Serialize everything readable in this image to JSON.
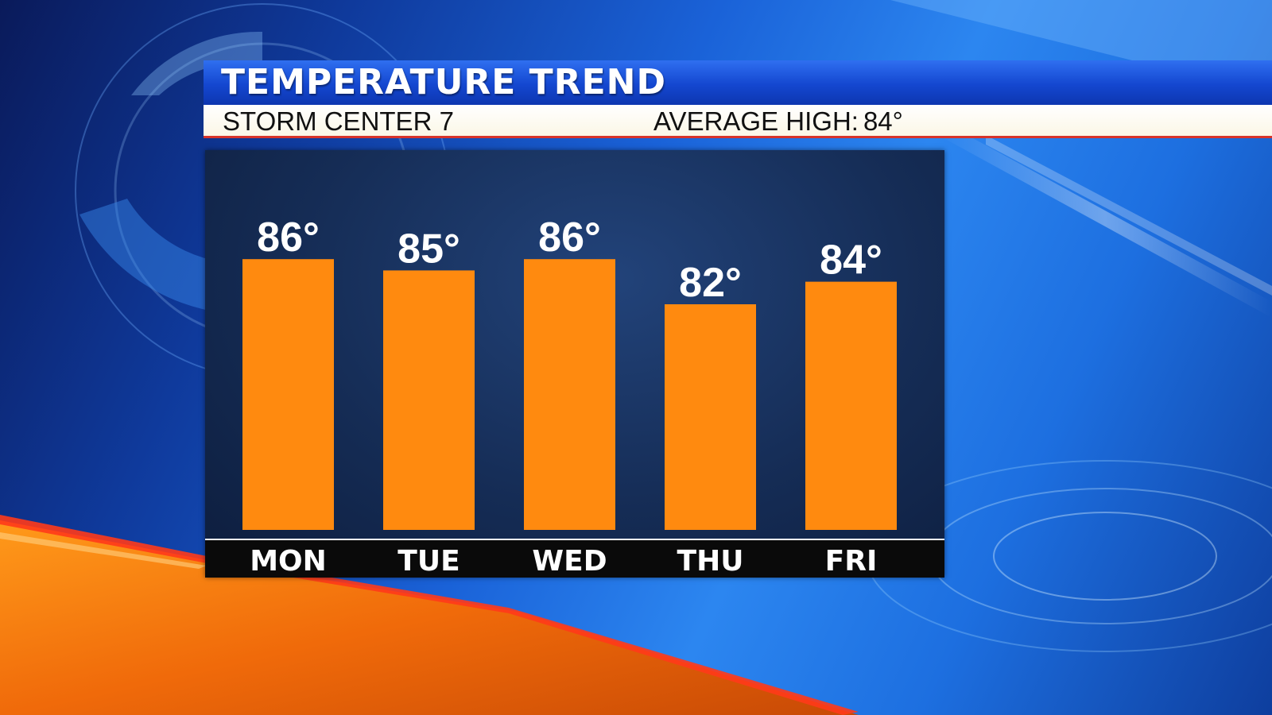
{
  "header": {
    "title": "TEMPERATURE TREND",
    "station": "STORM CENTER 7",
    "average_high_label": "AVERAGE HIGH:",
    "average_high_value": "84°"
  },
  "colors": {
    "bar": "#ff8a0f",
    "title_bar": "#1447d0",
    "panel": "#152c55",
    "axis_strip": "#0a0a0a"
  },
  "chart_data": {
    "type": "bar",
    "categories": [
      "MON",
      "TUE",
      "WED",
      "THU",
      "FRI"
    ],
    "values": [
      86,
      85,
      86,
      82,
      84
    ],
    "value_labels": [
      "86°",
      "85°",
      "86°",
      "82°",
      "84°"
    ],
    "title": "TEMPERATURE TREND",
    "xlabel": "",
    "ylabel": "",
    "ylim": [
      62,
      90
    ],
    "grid": false,
    "legend": "none"
  }
}
